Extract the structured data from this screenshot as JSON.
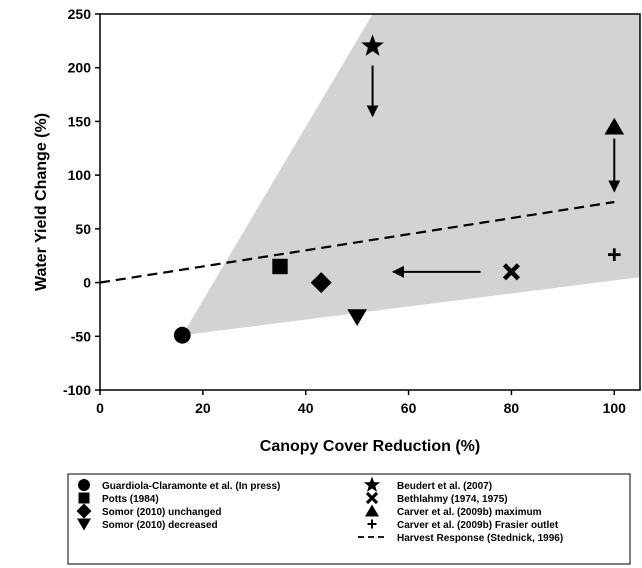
{
  "chart_data": {
    "type": "scatter",
    "xlabel": "Canopy Cover Reduction (%)",
    "ylabel": "Water Yield Change (%)",
    "xlim": [
      0,
      105
    ],
    "ylim": [
      -100,
      250
    ],
    "x_ticks": [
      0,
      20,
      40,
      60,
      80,
      100
    ],
    "y_ticks": [
      -100,
      -50,
      0,
      50,
      100,
      150,
      200,
      250
    ],
    "grid": false,
    "legend_position": "bottom",
    "shaded_region": {
      "polygon": [
        [
          16,
          -49
        ],
        [
          53,
          250
        ],
        [
          105,
          250
        ],
        [
          105,
          5
        ]
      ],
      "color": "#d3d3d3"
    },
    "series": [
      {
        "name": "Guardiola-Claramonte et al. (In press)",
        "marker": "circle",
        "points": [
          [
            16,
            -49
          ]
        ]
      },
      {
        "name": "Potts (1984)",
        "marker": "square",
        "points": [
          [
            35,
            15
          ]
        ]
      },
      {
        "name": "Somor (2010) unchanged",
        "marker": "diamond",
        "points": [
          [
            43,
            0
          ]
        ]
      },
      {
        "name": "Somor (2010) decreased",
        "marker": "triangle-down",
        "points": [
          [
            50,
            -32
          ]
        ]
      },
      {
        "name": "Beudert et al. (2007)",
        "marker": "star",
        "points": [
          [
            53,
            220
          ]
        ]
      },
      {
        "name": "Bethlahmy (1974, 1975)",
        "marker": "x",
        "points": [
          [
            80,
            10
          ]
        ]
      },
      {
        "name": "Carver et al. (2009b) maximum",
        "marker": "triangle-up",
        "points": [
          [
            100,
            145
          ]
        ]
      },
      {
        "name": "Carver et al. (2009b) Frasier outlet",
        "marker": "plus",
        "points": [
          [
            100,
            26
          ]
        ]
      },
      {
        "name": "Harvest Response (Stednick, 1996)",
        "marker": "dashed-line",
        "line": [
          [
            0,
            0
          ],
          [
            100,
            75
          ]
        ]
      }
    ],
    "arrows": [
      {
        "from": [
          53,
          202
        ],
        "to": [
          53,
          155
        ]
      },
      {
        "from": [
          100,
          134
        ],
        "to": [
          100,
          85
        ]
      },
      {
        "from": [
          74,
          10
        ],
        "to": [
          57,
          10
        ]
      }
    ],
    "legend": {
      "left": [
        {
          "marker": "circle",
          "text": "Guardiola-Claramonte et al. (In press)"
        },
        {
          "marker": "square",
          "text": "Potts (1984)"
        },
        {
          "marker": "diamond",
          "text": "Somor (2010) unchanged"
        },
        {
          "marker": "triangle-down",
          "text": "Somor (2010) decreased"
        }
      ],
      "right": [
        {
          "marker": "star",
          "text": "Beudert et al. (2007)"
        },
        {
          "marker": "x",
          "text": "Bethlahmy (1974, 1975)"
        },
        {
          "marker": "triangle-up",
          "text": "Carver et al. (2009b) maximum"
        },
        {
          "marker": "plus",
          "text": "Carver et al. (2009b) Frasier outlet"
        },
        {
          "marker": "dashed-line",
          "text": "Harvest Response (Stednick, 1996)"
        }
      ]
    }
  }
}
